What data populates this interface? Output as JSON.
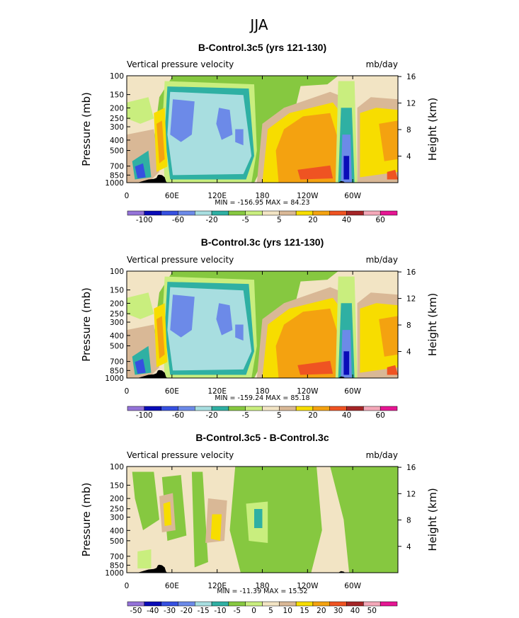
{
  "figure": {
    "title": "JJA"
  },
  "colors": {
    "c": [
      "#9473d8",
      "#0a0cb8",
      "#3650e0",
      "#6c8ae8",
      "#a8dee0",
      "#2fb0a3",
      "#86c840",
      "#c9ee7e",
      "#f2e4c4",
      "#d9b896",
      "#f7dd00",
      "#f4a210",
      "#ef5322",
      "#a52527",
      "#f4a8b9",
      "#e61693"
    ],
    "land": "#000000"
  },
  "chart_data": [
    {
      "type": "contour",
      "title": "B-Control.3c5 (yrs 121-130)",
      "left_label": "Vertical pressure velocity",
      "right_label": "mb/day",
      "ylabel": "Pressure (mb)",
      "ylabel_right": "Height (km)",
      "pressure_ticks": [
        "100",
        "150",
        "200",
        "250",
        "300",
        "400",
        "500",
        "700",
        "850",
        "1000"
      ],
      "pressure_values": [
        100,
        150,
        200,
        250,
        300,
        400,
        500,
        700,
        850,
        1000
      ],
      "height_ticks": [
        "16",
        "12",
        "8",
        "4"
      ],
      "height_values": [
        16,
        12,
        8,
        4
      ],
      "lon_ticks": [
        "0",
        "60E",
        "120E",
        "180",
        "120W",
        "60W"
      ],
      "lon_values": [
        0,
        60,
        120,
        180,
        240,
        300
      ],
      "xlim": [
        0,
        360
      ],
      "ylim": [
        1000,
        100
      ],
      "min_max_text": "MIN = -156.95   MAX =  84.23",
      "colorbar": [
        "-100",
        "-60",
        "-20",
        "-5",
        "5",
        "20",
        "40",
        "60"
      ],
      "colorbar_range": [
        -100,
        60
      ],
      "field": "full"
    },
    {
      "type": "contour",
      "title": "B-Control.3c (yrs 121-130)",
      "left_label": "Vertical pressure velocity",
      "right_label": "mb/day",
      "ylabel": "Pressure (mb)",
      "ylabel_right": "Height (km)",
      "pressure_ticks": [
        "100",
        "150",
        "200",
        "250",
        "300",
        "400",
        "500",
        "700",
        "850",
        "1000"
      ],
      "pressure_values": [
        100,
        150,
        200,
        250,
        300,
        400,
        500,
        700,
        850,
        1000
      ],
      "height_ticks": [
        "16",
        "12",
        "8",
        "4"
      ],
      "height_values": [
        16,
        12,
        8,
        4
      ],
      "lon_ticks": [
        "0",
        "60E",
        "120E",
        "180",
        "120W",
        "60W"
      ],
      "lon_values": [
        0,
        60,
        120,
        180,
        240,
        300
      ],
      "xlim": [
        0,
        360
      ],
      "ylim": [
        1000,
        100
      ],
      "min_max_text": "MIN = -159.24   MAX =  85.18",
      "colorbar": [
        "-100",
        "-60",
        "-20",
        "-5",
        "5",
        "20",
        "40",
        "60"
      ],
      "colorbar_range": [
        -100,
        60
      ],
      "field": "full"
    },
    {
      "type": "contour",
      "title": "B-Control.3c5 - B-Control.3c",
      "left_label": "Vertical pressure velocity",
      "right_label": "mb/day",
      "ylabel": "Pressure (mb)",
      "ylabel_right": "Height (km)",
      "pressure_ticks": [
        "100",
        "150",
        "200",
        "250",
        "300",
        "400",
        "500",
        "700",
        "850",
        "1000"
      ],
      "pressure_values": [
        100,
        150,
        200,
        250,
        300,
        400,
        500,
        700,
        850,
        1000
      ],
      "height_ticks": [
        "16",
        "12",
        "8",
        "4"
      ],
      "height_values": [
        16,
        12,
        8,
        4
      ],
      "lon_ticks": [
        "0",
        "60E",
        "120E",
        "180",
        "120W",
        "60W"
      ],
      "lon_values": [
        0,
        60,
        120,
        180,
        240,
        300
      ],
      "xlim": [
        0,
        360
      ],
      "ylim": [
        1000,
        100
      ],
      "min_max_text": "MIN = -11.39   MAX =  15.52",
      "colorbar": [
        "-50",
        "-40",
        "-30",
        "-20",
        "-15",
        "-10",
        "-5",
        "0",
        "5",
        "10",
        "15",
        "20",
        "30",
        "40",
        "50"
      ],
      "colorbar_range": [
        -50,
        50
      ],
      "field": "diff"
    }
  ]
}
